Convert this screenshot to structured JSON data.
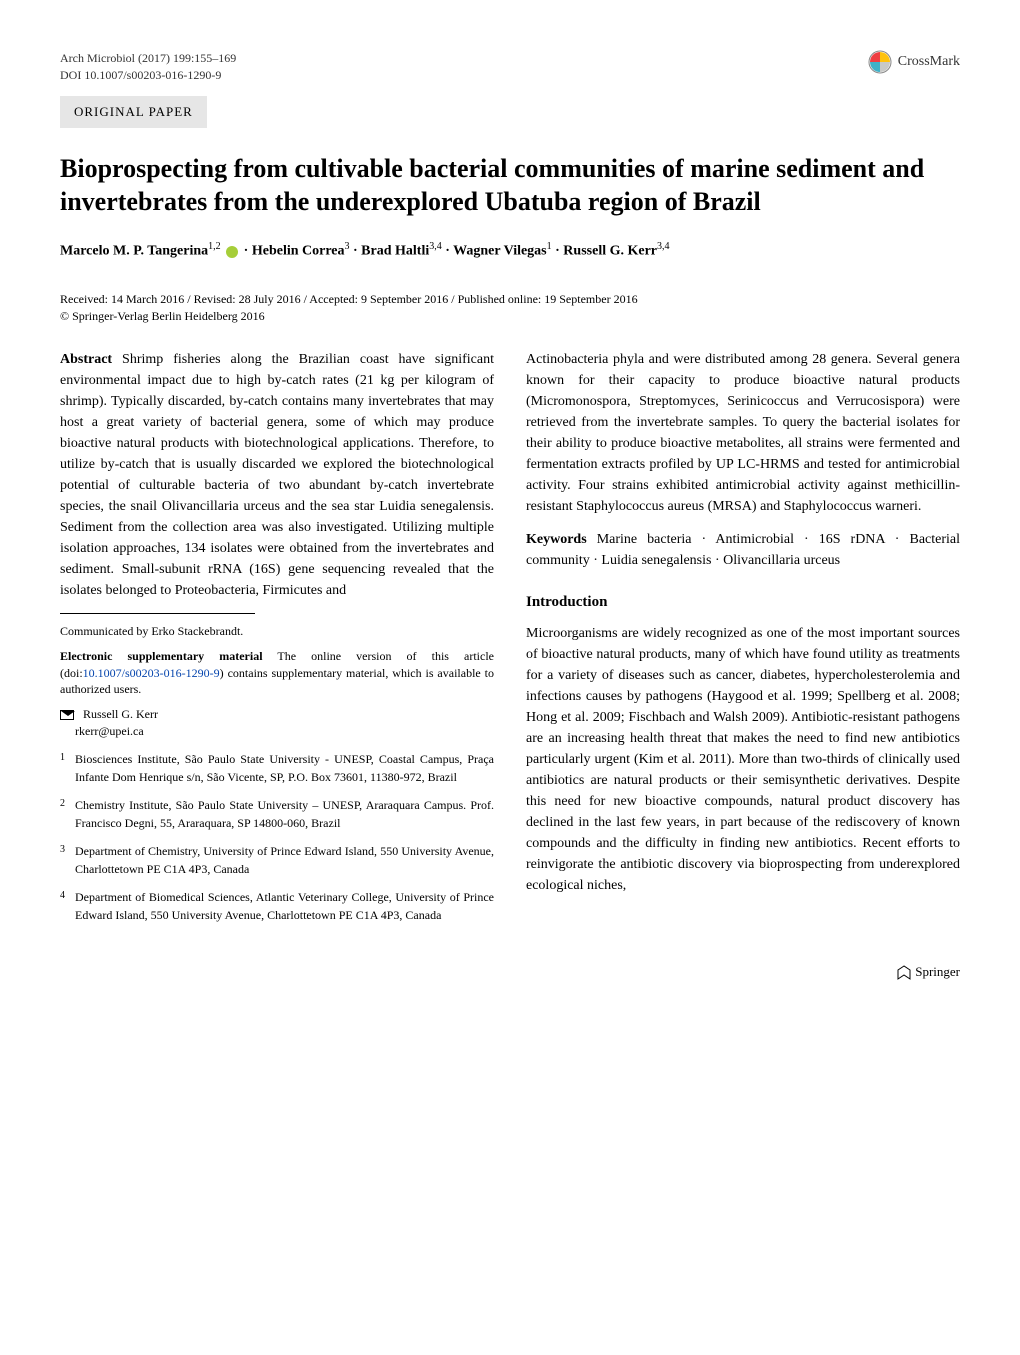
{
  "header": {
    "journal": "Arch Microbiol (2017) 199:155–169",
    "doi": "DOI 10.1007/s00203-016-1290-9",
    "crossmark_label": "CrossMark"
  },
  "category": "ORIGINAL PAPER",
  "title": "Bioprospecting from cultivable bacterial communities of marine sediment and invertebrates from the underexplored Ubatuba region of Brazil",
  "authors_html": "Marcelo M. P. Tangerina<sup>1,2</sup> <span class='orcid-icon' data-name='orcid-icon' data-interactable='false'></span> · Hebelin Correa<sup>3</sup> · Brad Haltli<sup>3,4</sup> · Wagner Vilegas<sup>1</sup> · Russell G. Kerr<sup>3,4</sup>",
  "dates": {
    "line1": "Received: 14 March 2016 / Revised: 28 July 2016 / Accepted: 9 September 2016 / Published online: 19 September 2016",
    "line2": "© Springer-Verlag Berlin Heidelberg 2016"
  },
  "abstract": {
    "label": "Abstract",
    "text_col1": "Shrimp fisheries along the Brazilian coast have significant environmental impact due to high by-catch rates (21 kg per kilogram of shrimp). Typically discarded, by-catch contains many invertebrates that may host a great variety of bacterial genera, some of which may produce bioactive natural products with biotechnological applications. Therefore, to utilize by-catch that is usually discarded we explored the biotechnological potential of culturable bacteria of two abundant by-catch invertebrate species, the snail Olivancillaria urceus and the sea star Luidia senegalensis. Sediment from the collection area was also investigated. Utilizing multiple isolation approaches, 134 isolates were obtained from the invertebrates and sediment. Small-subunit rRNA (16S) gene sequencing revealed that the isolates belonged to Proteobacteria, Firmicutes and",
    "text_col2": "Actinobacteria phyla and were distributed among 28 genera. Several genera known for their capacity to produce bioactive natural products (Micromonospora, Streptomyces, Serinicoccus and Verrucosispora) were retrieved from the invertebrate samples. To query the bacterial isolates for their ability to produce bioactive metabolites, all strains were fermented and fermentation extracts profiled by UP LC-HRMS and tested for antimicrobial activity. Four strains exhibited antimicrobial activity against methicillin-resistant Staphylococcus aureus (MRSA) and Staphylococcus warneri."
  },
  "keywords": {
    "label": "Keywords",
    "text": "Marine bacteria · Antimicrobial · 16S rDNA · Bacterial community · Luidia senegalensis · Olivancillaria urceus"
  },
  "intro": {
    "heading": "Introduction",
    "text": "Microorganisms are widely recognized as one of the most important sources of bioactive natural products, many of which have found utility as treatments for a variety of diseases such as cancer, diabetes, hypercholesterolemia and infections causes by pathogens (Haygood et al. 1999; Spellberg et al. 2008; Hong et al. 2009; Fischbach and Walsh 2009). Antibiotic-resistant pathogens are an increasing health threat that makes the need to find new antibiotics particularly urgent (Kim et al. 2011). More than two-thirds of clinically used antibiotics are natural products or their semisynthetic derivatives. Despite this need for new bioactive compounds, natural product discovery has declined in the last few years, in part because of the rediscovery of known compounds and the difficulty in finding new antibiotics. Recent efforts to reinvigorate the antibiotic discovery via bioprospecting from underexplored ecological niches,"
  },
  "communicated": "Communicated by Erko Stackebrandt.",
  "esm": {
    "label": "Electronic supplementary material",
    "text_before": "The online version of this article (doi:",
    "link_text": "10.1007/s00203-016-1290-9",
    "text_after": ") contains supplementary material, which is available to authorized users."
  },
  "correspondence": {
    "name": "Russell G. Kerr",
    "email": "rkerr@upei.ca"
  },
  "affiliations": [
    {
      "num": "1",
      "text": "Biosciences Institute, São Paulo State University - UNESP, Coastal Campus, Praça Infante Dom Henrique s/n, São Vicente, SP, P.O. Box 73601, 11380-972, Brazil"
    },
    {
      "num": "2",
      "text": "Chemistry Institute, São Paulo State University – UNESP, Araraquara Campus. Prof. Francisco Degni, 55, Araraquara, SP 14800-060, Brazil"
    },
    {
      "num": "3",
      "text": "Department of Chemistry, University of Prince Edward Island, 550 University Avenue, Charlottetown PE C1A 4P3, Canada"
    },
    {
      "num": "4",
      "text": "Department of Biomedical Sciences, Atlantic Veterinary College, University of Prince Edward Island, 550 University Avenue, Charlottetown PE C1A 4P3, Canada"
    }
  ],
  "footer": {
    "publisher": "Springer"
  },
  "colors": {
    "category_bg": "#e6e6e6",
    "link": "#0645ad",
    "orcid": "#a6ce39",
    "crossmark_yellow": "#ffc20e",
    "crossmark_red": "#ef3e42",
    "crossmark_blue": "#3eb1c8",
    "crossmark_gray": "#c8c9c7"
  }
}
